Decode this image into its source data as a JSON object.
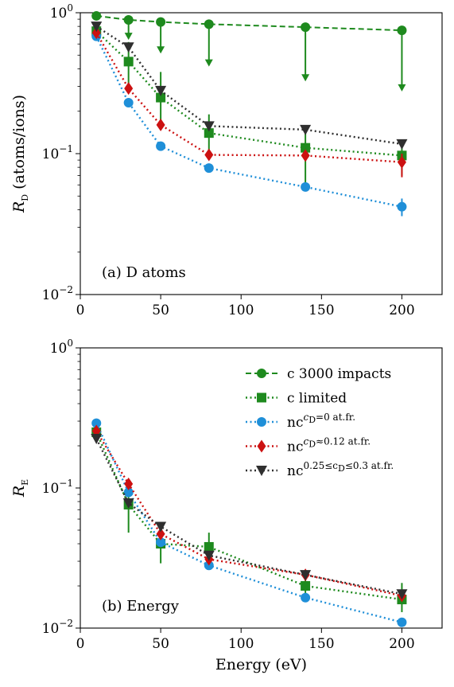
{
  "chart_data": [
    {
      "type": "line",
      "panel_label": "(a) D atoms",
      "xlabel": "",
      "ylabel": {
        "main": "R",
        "sub": "D",
        "unit": " (atoms/ions)"
      },
      "yscale": "log",
      "xlim": [
        0,
        225
      ],
      "ylim": [
        0.01,
        1
      ],
      "x_ticks": [
        "0",
        "50",
        "100",
        "150",
        "200"
      ],
      "y_ticks": [
        {
          "base": "10",
          "exp": "0"
        },
        {
          "base": "10",
          "exp": "−1"
        },
        {
          "base": "10",
          "exp": "−2"
        }
      ],
      "series": [
        {
          "key": "c3000",
          "x": [
            10,
            30,
            50,
            80,
            140,
            200
          ],
          "y": [
            0.95,
            0.89,
            0.86,
            0.83,
            0.79,
            0.75
          ],
          "upper_limit": [
            false,
            true,
            true,
            true,
            true,
            true
          ],
          "arrow_to": [
            null,
            0.65,
            0.52,
            0.42,
            0.33,
            0.28
          ]
        },
        {
          "key": "climited",
          "x": [
            10,
            30,
            50,
            80,
            140,
            200
          ],
          "y": [
            0.74,
            0.45,
            0.25,
            0.14,
            0.11,
            0.097
          ],
          "err_low": [
            0.66,
            0.27,
            0.15,
            0.1,
            0.055,
            0.07
          ],
          "err_high": [
            0.8,
            0.62,
            0.38,
            0.19,
            0.14,
            0.11
          ]
        },
        {
          "key": "nc0",
          "x": [
            10,
            30,
            50,
            80,
            140,
            200
          ],
          "y": [
            0.68,
            0.23,
            0.113,
            0.079,
            0.058,
            0.042
          ],
          "err_low": [
            null,
            null,
            null,
            null,
            null,
            0.036
          ],
          "err_high": [
            null,
            null,
            null,
            null,
            null,
            0.048
          ]
        },
        {
          "key": "nc012",
          "x": [
            10,
            30,
            50,
            80,
            140,
            200
          ],
          "y": [
            0.72,
            0.29,
            0.16,
            0.098,
            0.097,
            0.087
          ],
          "err_low": [
            null,
            null,
            null,
            null,
            null,
            0.068
          ],
          "err_high": [
            null,
            null,
            null,
            null,
            null,
            0.1
          ]
        },
        {
          "key": "nc03",
          "x": [
            10,
            30,
            50,
            80,
            140,
            200
          ],
          "y": [
            0.8,
            0.57,
            0.28,
            0.157,
            0.148,
            0.117
          ]
        }
      ]
    },
    {
      "type": "line",
      "panel_label": "(b) Energy",
      "xlabel": "Energy (eV)",
      "ylabel": {
        "main": "R",
        "sub": "E",
        "unit": ""
      },
      "yscale": "log",
      "xlim": [
        0,
        225
      ],
      "ylim": [
        0.01,
        1
      ],
      "x_ticks": [
        "0",
        "50",
        "100",
        "150",
        "200"
      ],
      "y_ticks": [
        {
          "base": "10",
          "exp": "0"
        },
        {
          "base": "10",
          "exp": "−1"
        },
        {
          "base": "10",
          "exp": "−2"
        }
      ],
      "series": [
        {
          "key": "climited",
          "x": [
            10,
            30,
            50,
            80,
            140,
            200
          ],
          "y": [
            0.25,
            0.076,
            0.04,
            0.038,
            0.02,
            0.016
          ],
          "err_low": [
            null,
            0.048,
            0.029,
            0.03,
            0.017,
            0.013
          ],
          "err_high": [
            null,
            0.098,
            0.05,
            0.048,
            0.023,
            0.021
          ]
        },
        {
          "key": "nc0",
          "x": [
            10,
            30,
            50,
            80,
            140,
            200
          ],
          "y": [
            0.29,
            0.093,
            0.041,
            0.028,
            0.0165,
            0.011
          ]
        },
        {
          "key": "nc012",
          "x": [
            10,
            30,
            50,
            80,
            140,
            200
          ],
          "y": [
            0.255,
            0.107,
            0.047,
            0.031,
            0.024,
            0.017
          ]
        },
        {
          "key": "nc03",
          "x": [
            10,
            30,
            50,
            80,
            140,
            200
          ],
          "y": [
            0.225,
            0.078,
            0.053,
            0.033,
            0.024,
            0.0175
          ]
        }
      ]
    }
  ],
  "legend": {
    "placement": "upper right of panel (b)",
    "entries": [
      {
        "key": "c3000",
        "label": "c 3000 impacts"
      },
      {
        "key": "climited",
        "label": "c limited"
      },
      {
        "key": "nc0",
        "base": "nc",
        "sup_main": "c",
        "sup_sub": "D",
        "sup_rest": "=0 at.fr."
      },
      {
        "key": "nc012",
        "base": "nc",
        "sup_main": "c",
        "sup_sub": "D",
        "sup_rest": "≈0.12 at.fr."
      },
      {
        "key": "nc03",
        "base": "nc",
        "sup_main": "0.25≤c",
        "sup_sub": "D",
        "sup_rest": "≤0.3 at.fr."
      }
    ]
  },
  "styles": {
    "c3000": {
      "color": "#1e8a1e",
      "marker": "circle",
      "dash": "dashed"
    },
    "climited": {
      "color": "#1e8a1e",
      "marker": "square",
      "dash": "dotted"
    },
    "nc0": {
      "color": "#1f8fd8",
      "marker": "circle",
      "dash": "dotted"
    },
    "nc012": {
      "color": "#cc1111",
      "marker": "diamond",
      "dash": "dotted"
    },
    "nc03": {
      "color": "#2f2f2f",
      "marker": "triangle-down",
      "dash": "dotted"
    }
  }
}
